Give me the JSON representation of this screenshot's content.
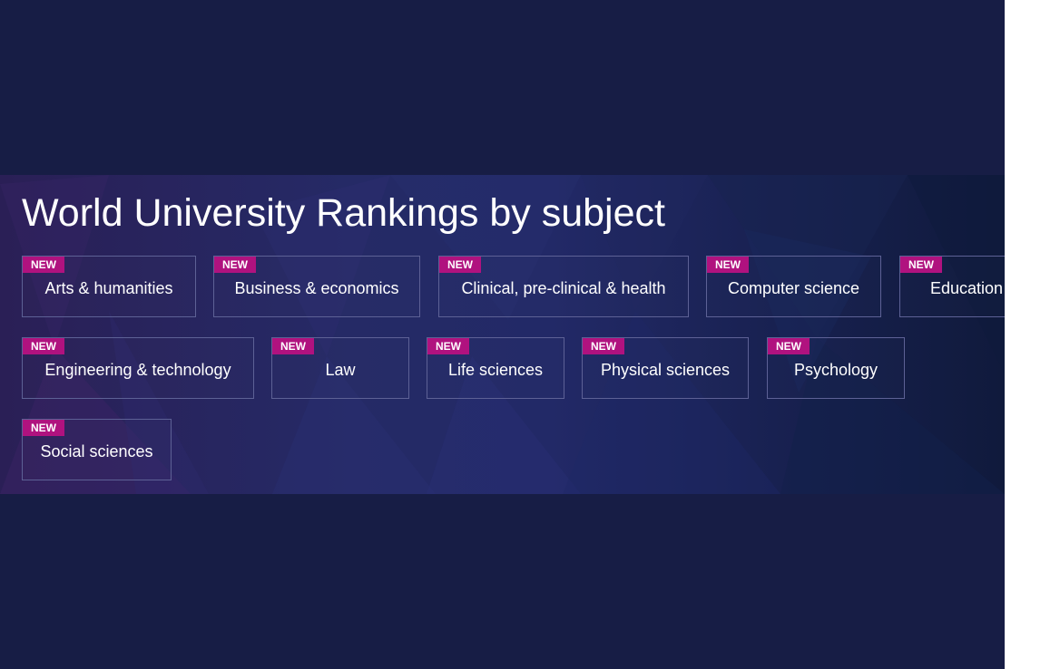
{
  "section": {
    "title": "World University Rankings by subject",
    "badge_text": "NEW"
  },
  "subjects": [
    {
      "label": "Arts & humanities",
      "badge": "NEW"
    },
    {
      "label": "Business & economics",
      "badge": "NEW"
    },
    {
      "label": "Clinical, pre-clinical & health",
      "badge": "NEW"
    },
    {
      "label": "Computer science",
      "badge": "NEW"
    },
    {
      "label": "Education",
      "badge": "NEW"
    },
    {
      "label": "Engineering & technology",
      "badge": "NEW"
    },
    {
      "label": "Law",
      "badge": "NEW"
    },
    {
      "label": "Life sciences",
      "badge": "NEW"
    },
    {
      "label": "Physical sciences",
      "badge": "NEW"
    },
    {
      "label": "Psychology",
      "badge": "NEW"
    },
    {
      "label": "Social sciences",
      "badge": "NEW"
    }
  ],
  "colors": {
    "page_background": "#171d45",
    "badge": "#b0127f",
    "tile_border": "#5d6195",
    "text": "#ffffff"
  }
}
